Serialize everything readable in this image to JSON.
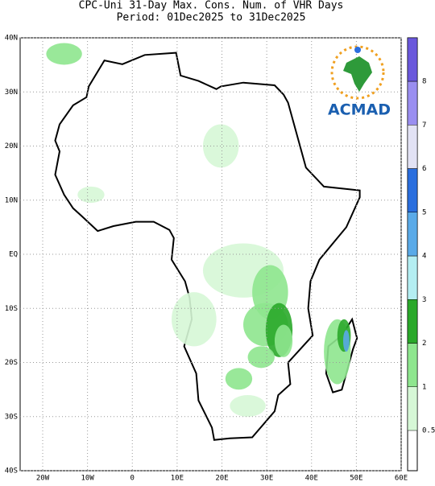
{
  "title": "CPC-Uni 31-Day Max. Cons. Num. of VHR Days",
  "subtitle": "Period: 01Dec2025 to 31Dec2025",
  "lat_labels": [
    "40N",
    "30N",
    "20N",
    "10N",
    "EQ",
    "10S",
    "20S",
    "30S",
    "40S"
  ],
  "lon_labels": [
    "20W",
    "10W",
    "0",
    "10E",
    "20E",
    "30E",
    "40E",
    "50E",
    "60E"
  ],
  "colorbar": [
    {
      "label": "0.5",
      "color": "#d6f7d6"
    },
    {
      "label": "1",
      "color": "#8ee68e"
    },
    {
      "label": "2",
      "color": "#2aa82a"
    },
    {
      "label": "3",
      "color": "#b4eef2"
    },
    {
      "label": "4",
      "color": "#5aaae8"
    },
    {
      "label": "5",
      "color": "#2a6ede"
    },
    {
      "label": "6",
      "color": "#e2e2f4"
    },
    {
      "label": "7",
      "color": "#9a8ef0"
    },
    {
      "label": "8",
      "color": "#6a58dc"
    }
  ],
  "logo_text": "ACMAD"
}
